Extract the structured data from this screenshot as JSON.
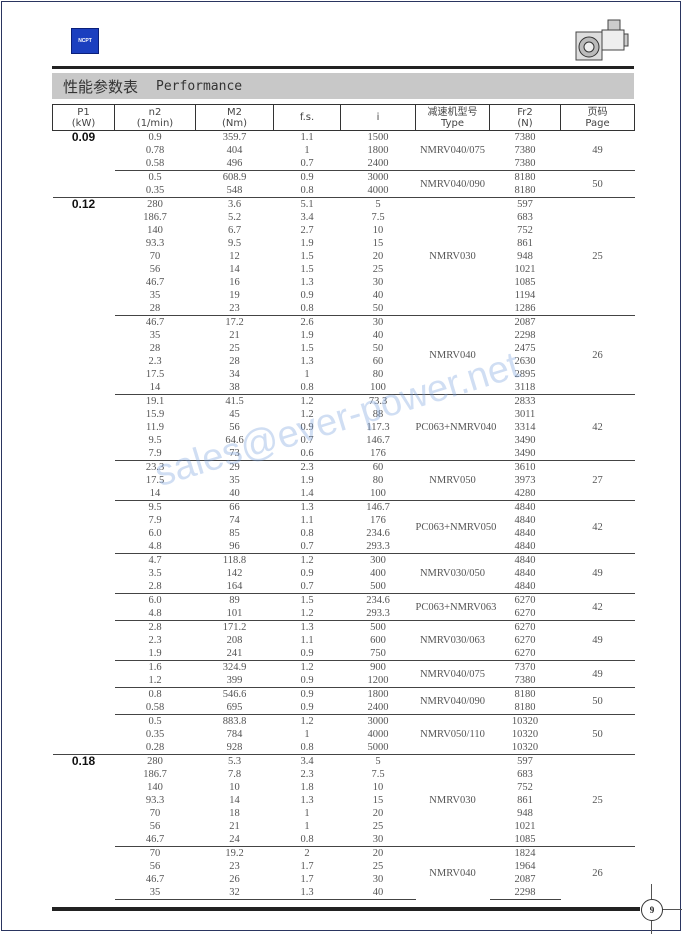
{
  "header": {
    "logo_text": "NCPT",
    "title_cn": "性能参数表",
    "title_en": "Performance"
  },
  "columns": [
    {
      "label": "P1",
      "unit": "(kW)"
    },
    {
      "label": "n2",
      "unit": "(1/min)"
    },
    {
      "label": "M2",
      "unit": "(Nm)"
    },
    {
      "label": "f.s.",
      "unit": ""
    },
    {
      "label": "i",
      "unit": ""
    },
    {
      "label": "减速机型号",
      "unit": "Type"
    },
    {
      "label": "Fr2",
      "unit": "(N)"
    },
    {
      "label": "页码",
      "unit": "Page"
    }
  ],
  "groups": [
    {
      "p1": "0.09",
      "subgroups": [
        {
          "type": "NMRV040/075",
          "page": "49",
          "rows": [
            [
              "0.9",
              "359.7",
              "1.1",
              "1500",
              "7380"
            ],
            [
              "0.78",
              "404",
              "1",
              "1800",
              "7380"
            ],
            [
              "0.58",
              "496",
              "0.7",
              "2400",
              "7380"
            ]
          ]
        },
        {
          "type": "NMRV040/090",
          "page": "50",
          "rows": [
            [
              "0.5",
              "608.9",
              "0.9",
              "3000",
              "8180"
            ],
            [
              "0.35",
              "548",
              "0.8",
              "4000",
              "8180"
            ]
          ]
        }
      ]
    },
    {
      "p1": "0.12",
      "subgroups": [
        {
          "type": "NMRV030",
          "page": "25",
          "rows": [
            [
              "280",
              "3.6",
              "5.1",
              "5",
              "597"
            ],
            [
              "186.7",
              "5.2",
              "3.4",
              "7.5",
              "683"
            ],
            [
              "140",
              "6.7",
              "2.7",
              "10",
              "752"
            ],
            [
              "93.3",
              "9.5",
              "1.9",
              "15",
              "861"
            ],
            [
              "70",
              "12",
              "1.5",
              "20",
              "948"
            ],
            [
              "56",
              "14",
              "1.5",
              "25",
              "1021"
            ],
            [
              "46.7",
              "16",
              "1.3",
              "30",
              "1085"
            ],
            [
              "35",
              "19",
              "0.9",
              "40",
              "1194"
            ],
            [
              "28",
              "23",
              "0.8",
              "50",
              "1286"
            ]
          ]
        },
        {
          "type": "NMRV040",
          "page": "26",
          "rows": [
            [
              "46.7",
              "17.2",
              "2.6",
              "30",
              "2087"
            ],
            [
              "35",
              "21",
              "1.9",
              "40",
              "2298"
            ],
            [
              "28",
              "25",
              "1.5",
              "50",
              "2475"
            ],
            [
              "2.3",
              "28",
              "1.3",
              "60",
              "2630"
            ],
            [
              "17.5",
              "34",
              "1",
              "80",
              "2895"
            ],
            [
              "14",
              "38",
              "0.8",
              "100",
              "3118"
            ]
          ]
        },
        {
          "type": "PC063+NMRV040",
          "page": "42",
          "rows": [
            [
              "19.1",
              "41.5",
              "1.2",
              "73.3",
              "2833"
            ],
            [
              "15.9",
              "45",
              "1.2",
              "88",
              "3011"
            ],
            [
              "11.9",
              "56",
              "0.9",
              "117.3",
              "3314"
            ],
            [
              "9.5",
              "64.6",
              "0.7",
              "146.7",
              "3490"
            ],
            [
              "7.9",
              "73",
              "0.6",
              "176",
              "3490"
            ]
          ]
        },
        {
          "type": "NMRV050",
          "page": "27",
          "rows": [
            [
              "23.3",
              "29",
              "2.3",
              "60",
              "3610"
            ],
            [
              "17.5",
              "35",
              "1.9",
              "80",
              "3973"
            ],
            [
              "14",
              "40",
              "1.4",
              "100",
              "4280"
            ]
          ]
        },
        {
          "type": "PC063+NMRV050",
          "page": "42",
          "rows": [
            [
              "9.5",
              "66",
              "1.3",
              "146.7",
              "4840"
            ],
            [
              "7.9",
              "74",
              "1.1",
              "176",
              "4840"
            ],
            [
              "6.0",
              "85",
              "0.8",
              "234.6",
              "4840"
            ],
            [
              "4.8",
              "96",
              "0.7",
              "293.3",
              "4840"
            ]
          ]
        },
        {
          "type": "NMRV030/050",
          "page": "49",
          "rows": [
            [
              "4.7",
              "118.8",
              "1.2",
              "300",
              "4840"
            ],
            [
              "3.5",
              "142",
              "0.9",
              "400",
              "4840"
            ],
            [
              "2.8",
              "164",
              "0.7",
              "500",
              "4840"
            ]
          ]
        },
        {
          "type": "PC063+NMRV063",
          "page": "42",
          "rows": [
            [
              "6.0",
              "89",
              "1.5",
              "234.6",
              "6270"
            ],
            [
              "4.8",
              "101",
              "1.2",
              "293.3",
              "6270"
            ]
          ]
        },
        {
          "type": "NMRV030/063",
          "page": "49",
          "rows": [
            [
              "2.8",
              "171.2",
              "1.3",
              "500",
              "6270"
            ],
            [
              "2.3",
              "208",
              "1.1",
              "600",
              "6270"
            ],
            [
              "1.9",
              "241",
              "0.9",
              "750",
              "6270"
            ]
          ]
        },
        {
          "type": "NMRV040/075",
          "page": "49",
          "rows": [
            [
              "1.6",
              "324.9",
              "1.2",
              "900",
              "7370"
            ],
            [
              "1.2",
              "399",
              "0.9",
              "1200",
              "7380"
            ]
          ]
        },
        {
          "type": "NMRV040/090",
          "page": "50",
          "rows": [
            [
              "0.8",
              "546.6",
              "0.9",
              "1800",
              "8180"
            ],
            [
              "0.58",
              "695",
              "0.9",
              "2400",
              "8180"
            ]
          ]
        },
        {
          "type": "NMRV050/110",
          "page": "50",
          "rows": [
            [
              "0.5",
              "883.8",
              "1.2",
              "3000",
              "10320"
            ],
            [
              "0.35",
              "784",
              "1",
              "4000",
              "10320"
            ],
            [
              "0.28",
              "928",
              "0.8",
              "5000",
              "10320"
            ]
          ]
        }
      ]
    },
    {
      "p1": "0.18",
      "subgroups": [
        {
          "type": "NMRV030",
          "page": "25",
          "rows": [
            [
              "280",
              "5.3",
              "3.4",
              "5",
              "597"
            ],
            [
              "186.7",
              "7.8",
              "2.3",
              "7.5",
              "683"
            ],
            [
              "140",
              "10",
              "1.8",
              "10",
              "752"
            ],
            [
              "93.3",
              "14",
              "1.3",
              "15",
              "861"
            ],
            [
              "70",
              "18",
              "1",
              "20",
              "948"
            ],
            [
              "56",
              "21",
              "1",
              "25",
              "1021"
            ],
            [
              "46.7",
              "24",
              "0.8",
              "30",
              "1085"
            ]
          ]
        },
        {
          "type": "NMRV040",
          "page": "26",
          "rows": [
            [
              "70",
              "19.2",
              "2",
              "20",
              "1824"
            ],
            [
              "56",
              "23",
              "1.7",
              "25",
              "1964"
            ],
            [
              "46.7",
              "26",
              "1.7",
              "30",
              "2087"
            ],
            [
              "35",
              "32",
              "1.3",
              "40",
              "2298"
            ]
          ]
        }
      ]
    }
  ],
  "watermark": "sales@ever-power.net",
  "footer": {
    "page_number": "9"
  }
}
